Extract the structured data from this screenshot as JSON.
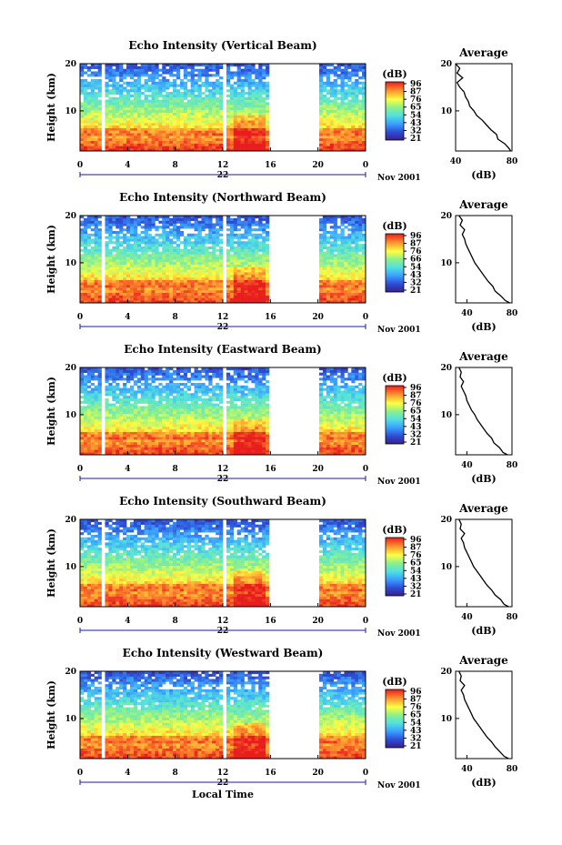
{
  "chart_data": [
    {
      "type": "heatmap",
      "title": "Echo Intensity (Vertical Beam)",
      "xlabel": "",
      "ylabel": "Height (km)",
      "xlim": [
        0,
        24
      ],
      "ylim": [
        1.5,
        20
      ],
      "x_ticks": [
        "0",
        "4",
        "8",
        "12",
        "16",
        "20",
        "0"
      ],
      "y_ticks": [
        "10",
        "20"
      ],
      "date_day": "22",
      "date_label": "Nov 2001",
      "data_gaps_hours": [
        [
          1.75,
          2.0
        ],
        [
          12.0,
          12.2
        ],
        [
          16.0,
          20.0
        ]
      ],
      "colorbar": {
        "label": "(dB)",
        "ticks": [
          "96",
          "87",
          "76",
          "65",
          "54",
          "43",
          "32",
          "21"
        ]
      },
      "profile": {
        "title": "Average",
        "xlabel": "(dB)",
        "x_ticks": [
          "40",
          "80"
        ],
        "xlim": [
          40,
          80
        ],
        "height_km": [
          1.5,
          2,
          3,
          4,
          5,
          6,
          7,
          8,
          9,
          10,
          11,
          12,
          13,
          14,
          15,
          16,
          17,
          18,
          19,
          20
        ],
        "values_db": [
          79,
          78,
          75,
          70,
          69,
          65,
          62,
          59,
          55,
          53,
          50,
          49,
          47,
          46,
          43,
          41,
          45,
          41,
          43,
          40
        ]
      }
    },
    {
      "type": "heatmap",
      "title": "Echo Intensity (Northward Beam)",
      "xlabel": "",
      "ylabel": "Height (km)",
      "xlim": [
        0,
        24
      ],
      "ylim": [
        1.5,
        20
      ],
      "x_ticks": [
        "0",
        "4",
        "8",
        "12",
        "16",
        "20",
        "0"
      ],
      "y_ticks": [
        "10",
        "20"
      ],
      "date_day": "22",
      "date_label": "Nov 2001",
      "data_gaps_hours": [
        [
          1.75,
          2.0
        ],
        [
          12.0,
          12.2
        ],
        [
          16.0,
          20.0
        ]
      ],
      "colorbar": {
        "label": "(dB)",
        "ticks": [
          "96",
          "87",
          "76",
          "66",
          "54",
          "43",
          "32",
          "21"
        ]
      },
      "profile": {
        "title": "Average",
        "xlabel": "(dB)",
        "x_ticks": [
          "40",
          "80"
        ],
        "xlim": [
          30,
          80
        ],
        "height_km": [
          1.5,
          2,
          3,
          4,
          5,
          6,
          7,
          8,
          9,
          10,
          11,
          12,
          13,
          14,
          15,
          16,
          17,
          18,
          19,
          20
        ],
        "values_db": [
          78,
          74,
          70,
          65,
          63,
          59,
          56,
          53,
          50,
          47,
          45,
          43,
          41,
          39,
          38,
          36,
          38,
          34,
          36,
          33
        ]
      }
    },
    {
      "type": "heatmap",
      "title": "Echo Intensity (Eastward Beam)",
      "xlabel": "",
      "ylabel": "Height (km)",
      "xlim": [
        0,
        24
      ],
      "ylim": [
        1.5,
        20
      ],
      "x_ticks": [
        "0",
        "4",
        "8",
        "12",
        "16",
        "20",
        "0"
      ],
      "y_ticks": [
        "10",
        "20"
      ],
      "date_day": "22",
      "date_label": "Nov 2001",
      "data_gaps_hours": [
        [
          1.75,
          2.0
        ],
        [
          12.0,
          12.2
        ],
        [
          16.0,
          20.0
        ]
      ],
      "colorbar": {
        "label": "(dB)",
        "ticks": [
          "96",
          "87",
          "76",
          "65",
          "54",
          "43",
          "32",
          "21"
        ]
      },
      "profile": {
        "title": "Average",
        "xlabel": "(dB)",
        "x_ticks": [
          "40",
          "80"
        ],
        "xlim": [
          30,
          80
        ],
        "height_km": [
          1.5,
          2,
          3,
          4,
          5,
          6,
          7,
          8,
          9,
          10,
          11,
          12,
          13,
          14,
          15,
          16,
          17,
          18,
          19,
          20
        ],
        "values_db": [
          76,
          72,
          69,
          64,
          62,
          58,
          55,
          52,
          49,
          47,
          44,
          42,
          40,
          39,
          37,
          35,
          37,
          34,
          35,
          33
        ]
      }
    },
    {
      "type": "heatmap",
      "title": "Echo Intensity (Southward Beam)",
      "xlabel": "",
      "ylabel": "Height (km)",
      "xlim": [
        0,
        24
      ],
      "ylim": [
        1.5,
        20
      ],
      "x_ticks": [
        "0",
        "4",
        "8",
        "12",
        "16",
        "20",
        "0"
      ],
      "y_ticks": [
        "10",
        "20"
      ],
      "date_day": "22",
      "date_label": "Nov 2001",
      "data_gaps_hours": [
        [
          1.75,
          2.0
        ],
        [
          12.0,
          12.2
        ],
        [
          16.0,
          20.0
        ]
      ],
      "colorbar": {
        "label": "(dB)",
        "ticks": [
          "96",
          "87",
          "76",
          "65",
          "54",
          "43",
          "32",
          "21"
        ]
      },
      "profile": {
        "title": "Average",
        "xlabel": "(dB)",
        "x_ticks": [
          "40",
          "80"
        ],
        "xlim": [
          30,
          80
        ],
        "height_km": [
          1.5,
          2,
          3,
          4,
          5,
          6,
          7,
          8,
          9,
          10,
          11,
          12,
          13,
          14,
          15,
          16,
          17,
          18,
          19,
          20
        ],
        "values_db": [
          77,
          73,
          70,
          65,
          62,
          58,
          55,
          52,
          49,
          46,
          44,
          42,
          40,
          38,
          37,
          35,
          38,
          34,
          35,
          33
        ]
      }
    },
    {
      "type": "heatmap",
      "title": "Echo Intensity (Westward Beam)",
      "xlabel": "Local Time",
      "ylabel": "Height (km)",
      "xlim": [
        0,
        24
      ],
      "ylim": [
        1.5,
        20
      ],
      "x_ticks": [
        "0",
        "4",
        "8",
        "12",
        "16",
        "20",
        "0"
      ],
      "y_ticks": [
        "10",
        "20"
      ],
      "date_day": "22",
      "date_label": "Nov 2001",
      "data_gaps_hours": [
        [
          1.75,
          2.0
        ],
        [
          12.0,
          12.2
        ],
        [
          16.0,
          20.0
        ]
      ],
      "colorbar": {
        "label": "(dB)",
        "ticks": [
          "96",
          "87",
          "76",
          "65",
          "54",
          "43",
          "32",
          "21"
        ]
      },
      "profile": {
        "title": "Average",
        "xlabel": "(dB)",
        "x_ticks": [
          "40",
          "80"
        ],
        "xlim": [
          30,
          80
        ],
        "height_km": [
          1.5,
          2,
          3,
          4,
          5,
          6,
          7,
          8,
          9,
          10,
          11,
          12,
          13,
          14,
          15,
          16,
          17,
          18,
          19,
          20
        ],
        "values_db": [
          77,
          73,
          69,
          65,
          62,
          58,
          55,
          52,
          49,
          46,
          44,
          42,
          40,
          38,
          37,
          35,
          38,
          34,
          35,
          33
        ]
      }
    }
  ]
}
